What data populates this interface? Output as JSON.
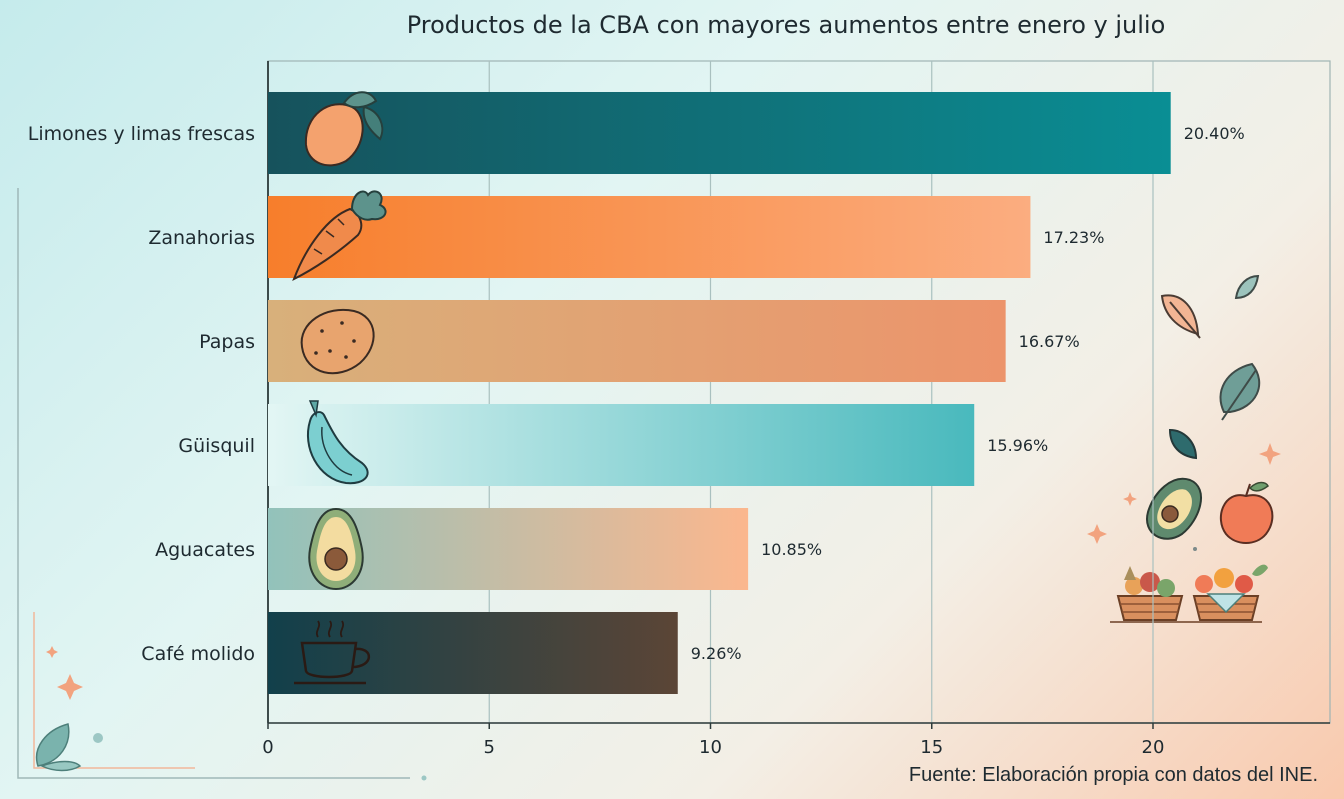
{
  "chart_data": {
    "type": "bar",
    "orientation": "horizontal",
    "title": "Productos de la CBA con mayores aumentos entre enero y julio",
    "categories": [
      "Limones y limas frescas",
      "Zanahorias",
      "Papas",
      "Güisquil",
      "Aguacates",
      "Café molido"
    ],
    "values": [
      20.4,
      17.23,
      16.67,
      15.96,
      10.85,
      9.26
    ],
    "value_labels": [
      "20.40%",
      "17.23%",
      "16.67%",
      "15.96%",
      "10.85%",
      "9.26%"
    ],
    "xlim": [
      0,
      24
    ],
    "xticks": [
      0,
      5,
      10,
      15,
      20
    ],
    "xlabel": "",
    "ylabel": "",
    "grid": "vertical",
    "bar_colors": [
      [
        "#16525c",
        "#0a8e94"
      ],
      [
        "#f77e2b",
        "#fbad80"
      ],
      [
        "#d8b07b",
        "#ec946b"
      ],
      [
        "#e3f6f4",
        "#49b9bd"
      ],
      [
        "#92c2bb",
        "#fbb78e"
      ],
      [
        "#12404b",
        "#5b4536"
      ]
    ],
    "bar_icons": [
      "lemon-icon",
      "carrot-icon",
      "potato-icon",
      "chayote-icon",
      "avocado-icon",
      "coffee-cup-icon"
    ]
  },
  "source_note": "Fuente: Elaboración propia con datos del INE."
}
